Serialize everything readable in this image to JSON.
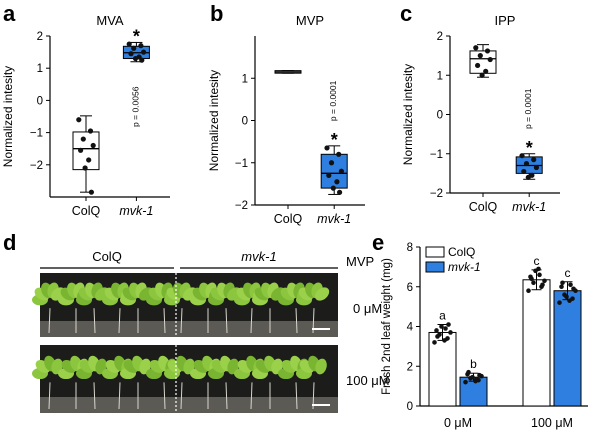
{
  "colors": {
    "mutant": "#2f7fe0",
    "control": "#ffffff",
    "stroke": "#000000"
  },
  "panels": {
    "a": {
      "letter": "a",
      "title": "MVA"
    },
    "b": {
      "letter": "b",
      "title": "MVP"
    },
    "c": {
      "letter": "c",
      "title": "IPP"
    },
    "d": {
      "letter": "d"
    },
    "e": {
      "letter": "e"
    }
  },
  "panel_d": {
    "col1": "ColQ",
    "col2": "mvk-1",
    "header": "MVP",
    "row1": "0 μM",
    "row2": "100 μM"
  },
  "chart_data": [
    {
      "id": "a",
      "type": "box",
      "title": "MVA",
      "ylabel": "Normalized intesity",
      "ylim": [
        -3,
        2
      ],
      "yticks": [
        2,
        1,
        0,
        -1,
        -2
      ],
      "categories": [
        "ColQ",
        "mvk-1"
      ],
      "annotation": "p = 0.0056",
      "star": "*",
      "boxes": [
        {
          "category": "ColQ",
          "color": "#ffffff",
          "min": -2.85,
          "q1": -2.15,
          "median": -1.5,
          "q3": -0.98,
          "max": -0.48,
          "points": [
            -0.6,
            -0.95,
            -1.2,
            -1.4,
            -1.55,
            -1.85,
            -2.1,
            -2.85
          ]
        },
        {
          "category": "mvk-1",
          "color": "#2f7fe0",
          "min": 1.2,
          "q1": 1.3,
          "median": 1.48,
          "q3": 1.68,
          "max": 1.8,
          "points": [
            1.75,
            1.7,
            1.62,
            1.5,
            1.45,
            1.35,
            1.3,
            1.25
          ]
        }
      ]
    },
    {
      "id": "b",
      "type": "box",
      "title": "MVP",
      "ylabel": "Normalized intesity",
      "ylim": [
        -2,
        2
      ],
      "yticks": [
        1,
        0,
        -1,
        -2
      ],
      "categories": [
        "ColQ",
        "mvk-1"
      ],
      "annotation": "p = 0.0001",
      "star": "*",
      "boxes": [
        {
          "category": "ColQ",
          "color": "#ffffff",
          "min": 1.12,
          "q1": 1.12,
          "median": 1.15,
          "q3": 1.18,
          "max": 1.18,
          "points": []
        },
        {
          "category": "mvk-1",
          "color": "#2f7fe0",
          "min": -1.75,
          "q1": -1.6,
          "median": -1.25,
          "q3": -0.8,
          "max": -0.6,
          "points": [
            -0.65,
            -0.8,
            -1.0,
            -1.2,
            -1.3,
            -1.45,
            -1.6,
            -1.7
          ]
        }
      ]
    },
    {
      "id": "c",
      "type": "box",
      "title": "IPP",
      "ylabel": "Normalized intesity",
      "ylim": [
        -2,
        2
      ],
      "yticks": [
        2,
        1,
        0,
        -1,
        -2
      ],
      "categories": [
        "ColQ",
        "mvk-1"
      ],
      "annotation": "p = 0.0001",
      "star": "*",
      "boxes": [
        {
          "category": "ColQ",
          "color": "#ffffff",
          "min": 0.95,
          "q1": 1.05,
          "median": 1.42,
          "q3": 1.62,
          "max": 1.78,
          "points": [
            1.7,
            1.62,
            1.5,
            1.4,
            1.25,
            1.1,
            1.0
          ]
        },
        {
          "category": "mvk-1",
          "color": "#2f7fe0",
          "min": -1.65,
          "q1": -1.5,
          "median": -1.3,
          "q3": -1.08,
          "max": -1.0,
          "points": [
            -1.05,
            -1.15,
            -1.25,
            -1.35,
            -1.45,
            -1.55,
            -1.6
          ]
        }
      ]
    },
    {
      "id": "e",
      "type": "bar",
      "ylabel": "Fresh 2nd leaf weight  (mg)",
      "ylim": [
        0,
        8
      ],
      "yticks": [
        0,
        2,
        4,
        6,
        8
      ],
      "categories": [
        "0 μM",
        "100 μM"
      ],
      "legend": {
        "placement": "top-left",
        "entries": [
          "ColQ",
          "mvk-1"
        ]
      },
      "series": [
        {
          "name": "ColQ",
          "color": "#ffffff",
          "values": [
            3.7,
            6.35
          ],
          "errors": [
            0.4,
            0.5
          ],
          "letters": [
            "a",
            "c"
          ],
          "points": [
            [
              3.2,
              3.4,
              3.6,
              3.7,
              3.8,
              3.9,
              4.0,
              4.1,
              3.5,
              3.3
            ],
            [
              5.8,
              6.0,
              6.2,
              6.3,
              6.5,
              6.6,
              6.8,
              6.1,
              6.4,
              6.9
            ]
          ]
        },
        {
          "name": "mvk-1",
          "color": "#2f7fe0",
          "values": [
            1.45,
            5.8
          ],
          "errors": [
            0.2,
            0.45
          ],
          "letters": [
            "b",
            "c"
          ],
          "points": [
            [
              1.2,
              1.3,
              1.4,
              1.5,
              1.6,
              1.35,
              1.45,
              1.55,
              1.7,
              1.25
            ],
            [
              5.2,
              5.4,
              5.6,
              5.8,
              6.0,
              6.1,
              5.5,
              5.9,
              6.2,
              5.3
            ]
          ]
        }
      ]
    }
  ]
}
